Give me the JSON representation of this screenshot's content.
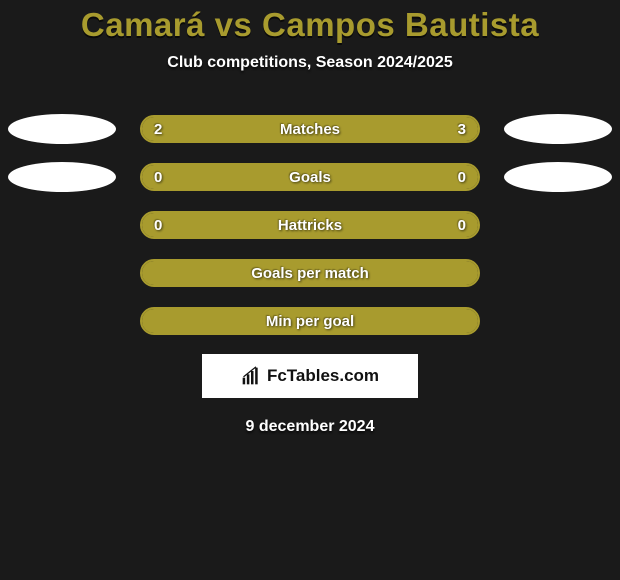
{
  "title": "Camará vs Campos Bautista",
  "subtitle": "Club competitions, Season 2024/2025",
  "date": "9 december 2024",
  "brand_text": "FcTables.com",
  "colors": {
    "background": "#1a1a1a",
    "accent": "#a89b2e",
    "bar_border": "#a89b2e",
    "bar_fill": "#a89b2e",
    "text_white": "#ffffff",
    "brand_bg": "#ffffff",
    "brand_text": "#111111"
  },
  "rows": [
    {
      "label": "Matches",
      "left_val": "2",
      "right_val": "3",
      "left_pct": 40,
      "right_pct": 60,
      "show_left_ellipse": true,
      "show_right_ellipse": true
    },
    {
      "label": "Goals",
      "left_val": "0",
      "right_val": "0",
      "left_pct": 50,
      "right_pct": 50,
      "show_left_ellipse": true,
      "show_right_ellipse": true
    },
    {
      "label": "Hattricks",
      "left_val": "0",
      "right_val": "0",
      "left_pct": 50,
      "right_pct": 50,
      "show_left_ellipse": false,
      "show_right_ellipse": false
    },
    {
      "label": "Goals per match",
      "left_val": "",
      "right_val": "",
      "left_pct": 50,
      "right_pct": 50,
      "show_left_ellipse": false,
      "show_right_ellipse": false
    },
    {
      "label": "Min per goal",
      "left_val": "",
      "right_val": "",
      "left_pct": 50,
      "right_pct": 50,
      "show_left_ellipse": false,
      "show_right_ellipse": false
    }
  ]
}
